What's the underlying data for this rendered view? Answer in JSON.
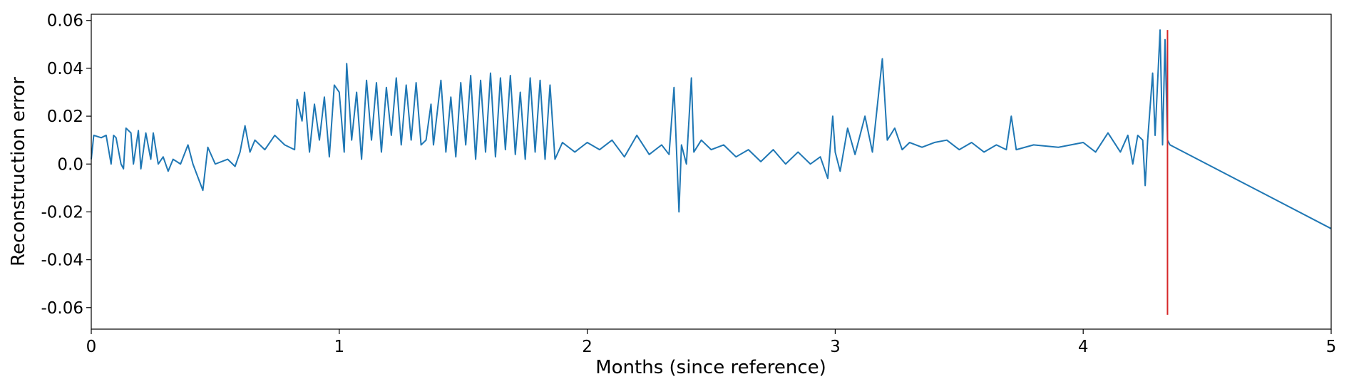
{
  "chart_data": {
    "type": "line",
    "xlabel": "Months (since reference)",
    "ylabel": "Reconstruction error",
    "x": [
      0,
      0.01,
      0.04,
      0.06,
      0.08,
      0.09,
      0.1,
      0.12,
      0.13,
      0.14,
      0.16,
      0.17,
      0.19,
      0.2,
      0.22,
      0.24,
      0.25,
      0.27,
      0.29,
      0.31,
      0.33,
      0.36,
      0.39,
      0.41,
      0.45,
      0.47,
      0.5,
      0.55,
      0.58,
      0.6,
      0.62,
      0.64,
      0.66,
      0.7,
      0.74,
      0.78,
      0.82,
      0.83,
      0.85,
      0.86,
      0.88,
      0.9,
      0.92,
      0.94,
      0.96,
      0.98,
      1.0,
      1.02,
      1.03,
      1.05,
      1.07,
      1.09,
      1.11,
      1.13,
      1.15,
      1.17,
      1.19,
      1.21,
      1.23,
      1.25,
      1.27,
      1.29,
      1.31,
      1.33,
      1.35,
      1.37,
      1.38,
      1.41,
      1.43,
      1.45,
      1.47,
      1.49,
      1.51,
      1.53,
      1.55,
      1.57,
      1.59,
      1.61,
      1.63,
      1.65,
      1.67,
      1.69,
      1.71,
      1.73,
      1.75,
      1.77,
      1.79,
      1.81,
      1.83,
      1.85,
      1.87,
      1.9,
      1.95,
      2.0,
      2.05,
      2.1,
      2.15,
      2.2,
      2.25,
      2.3,
      2.33,
      2.35,
      2.36,
      2.37,
      2.38,
      2.4,
      2.42,
      2.43,
      2.46,
      2.5,
      2.55,
      2.6,
      2.65,
      2.7,
      2.75,
      2.8,
      2.85,
      2.9,
      2.94,
      2.97,
      2.99,
      3.0,
      3.02,
      3.05,
      3.08,
      3.12,
      3.15,
      3.19,
      3.21,
      3.24,
      3.27,
      3.3,
      3.35,
      3.4,
      3.45,
      3.5,
      3.55,
      3.6,
      3.65,
      3.69,
      3.71,
      3.73,
      3.8,
      3.9,
      4.0,
      4.05,
      4.1,
      4.15,
      4.18,
      4.2,
      4.22,
      4.24,
      4.25,
      4.26,
      4.28,
      4.29,
      4.31,
      4.32,
      4.33,
      4.34,
      4.35,
      5.0
    ],
    "series": [
      {
        "color": "#1f77b4",
        "values": [
          0.002,
          0.012,
          0.011,
          0.012,
          0.0,
          0.012,
          0.011,
          0.0,
          -0.002,
          0.015,
          0.013,
          0.0,
          0.014,
          -0.002,
          0.013,
          0.002,
          0.013,
          0.0,
          0.003,
          -0.003,
          0.002,
          0.0,
          0.008,
          0.0,
          -0.011,
          0.007,
          0.0,
          0.002,
          -0.001,
          0.005,
          0.016,
          0.005,
          0.01,
          0.006,
          0.012,
          0.008,
          0.006,
          0.027,
          0.018,
          0.03,
          0.005,
          0.025,
          0.01,
          0.028,
          0.003,
          0.033,
          0.03,
          0.005,
          0.042,
          0.01,
          0.03,
          0.002,
          0.035,
          0.01,
          0.034,
          0.005,
          0.032,
          0.012,
          0.036,
          0.008,
          0.033,
          0.01,
          0.034,
          0.008,
          0.01,
          0.025,
          0.008,
          0.035,
          0.005,
          0.028,
          0.003,
          0.034,
          0.008,
          0.037,
          0.002,
          0.035,
          0.005,
          0.038,
          0.003,
          0.036,
          0.006,
          0.037,
          0.004,
          0.03,
          0.002,
          0.036,
          0.005,
          0.035,
          0.002,
          0.033,
          0.002,
          0.009,
          0.005,
          0.009,
          0.006,
          0.01,
          0.003,
          0.012,
          0.004,
          0.008,
          0.004,
          0.032,
          0.006,
          -0.02,
          0.008,
          0.0,
          0.036,
          0.005,
          0.01,
          0.006,
          0.008,
          0.003,
          0.006,
          0.001,
          0.006,
          0.0,
          0.005,
          0.0,
          0.003,
          -0.006,
          0.02,
          0.005,
          -0.003,
          0.015,
          0.004,
          0.02,
          0.005,
          0.044,
          0.01,
          0.015,
          0.006,
          0.009,
          0.007,
          0.009,
          0.01,
          0.006,
          0.009,
          0.005,
          0.008,
          0.006,
          0.02,
          0.006,
          0.008,
          0.007,
          0.009,
          0.005,
          0.013,
          0.005,
          0.012,
          0.0,
          0.012,
          0.01,
          -0.009,
          0.01,
          0.038,
          0.012,
          0.056,
          0.008,
          0.052,
          0.01,
          0.008,
          -0.027
        ]
      }
    ],
    "vline": {
      "x": 4.34,
      "ymin": -0.063,
      "ymax": 0.056,
      "color": "#d62728"
    },
    "xlim": [
      0,
      5
    ],
    "xticks": [
      0,
      1,
      2,
      3,
      4,
      5
    ],
    "ylim": [
      -0.069,
      0.0626
    ],
    "yticks": [
      -0.06,
      -0.04,
      -0.02,
      {
        "value": 0,
        "label": "0.0"
      },
      0.02,
      0.04,
      0.06
    ]
  }
}
